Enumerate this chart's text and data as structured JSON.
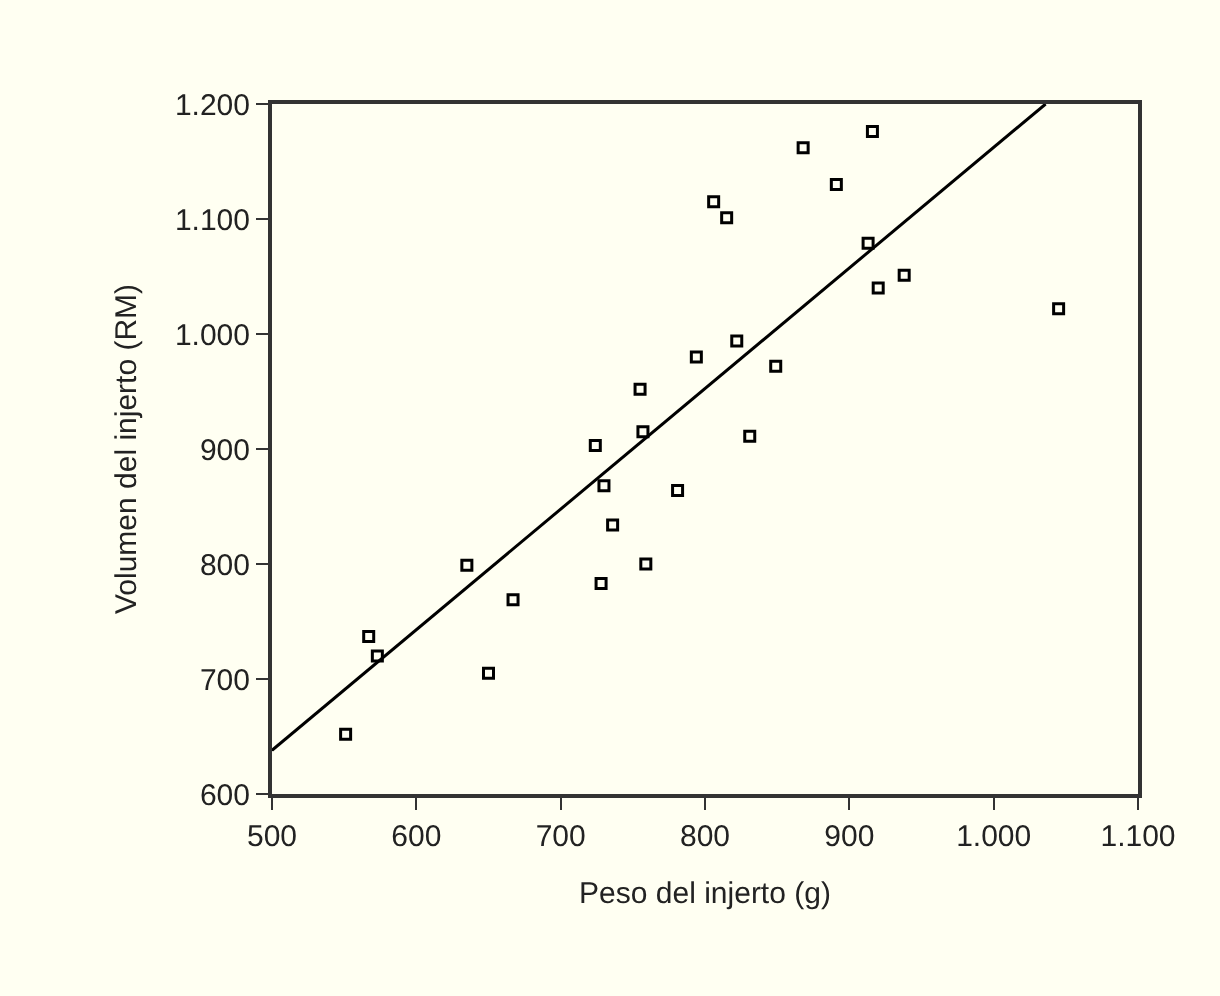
{
  "chart_data": {
    "type": "scatter",
    "xlabel": "Peso del injerto (g)",
    "ylabel": "Volumen del injerto (RM)",
    "series": [
      {
        "marker": "square",
        "color": "#000000",
        "x": [
          916,
          868,
          891,
          806,
          815,
          913,
          938,
          920,
          1045,
          794,
          822,
          849,
          831,
          755,
          757,
          724,
          730,
          781,
          736,
          635,
          759,
          728,
          667,
          567,
          573,
          650,
          551
        ],
        "values": [
          1176,
          1162,
          1130,
          1115,
          1101,
          1079,
          1051,
          1040,
          1022,
          980,
          994,
          972,
          911,
          952,
          915,
          903,
          868,
          864,
          834,
          799,
          800,
          783,
          769,
          737,
          720,
          705,
          652
        ]
      },
      {
        "type": "line",
        "marker": "none",
        "color": "#000000",
        "x": [
          500,
          1036
        ],
        "values": [
          638,
          1200
        ]
      }
    ],
    "xlim": [
      500,
      1100
    ],
    "ylim": [
      600,
      1200
    ],
    "xticks": [
      500,
      600,
      700,
      800,
      900,
      {
        "value": 1000,
        "label": "1.000"
      },
      {
        "value": 1100,
        "label": "1.100"
      }
    ],
    "yticks": [
      600,
      700,
      800,
      900,
      {
        "value": 1000,
        "label": "1.000"
      },
      {
        "value": 1100,
        "label": "1.100"
      },
      {
        "value": 1200,
        "label": "1.200"
      }
    ],
    "grid": false,
    "legend": false
  }
}
